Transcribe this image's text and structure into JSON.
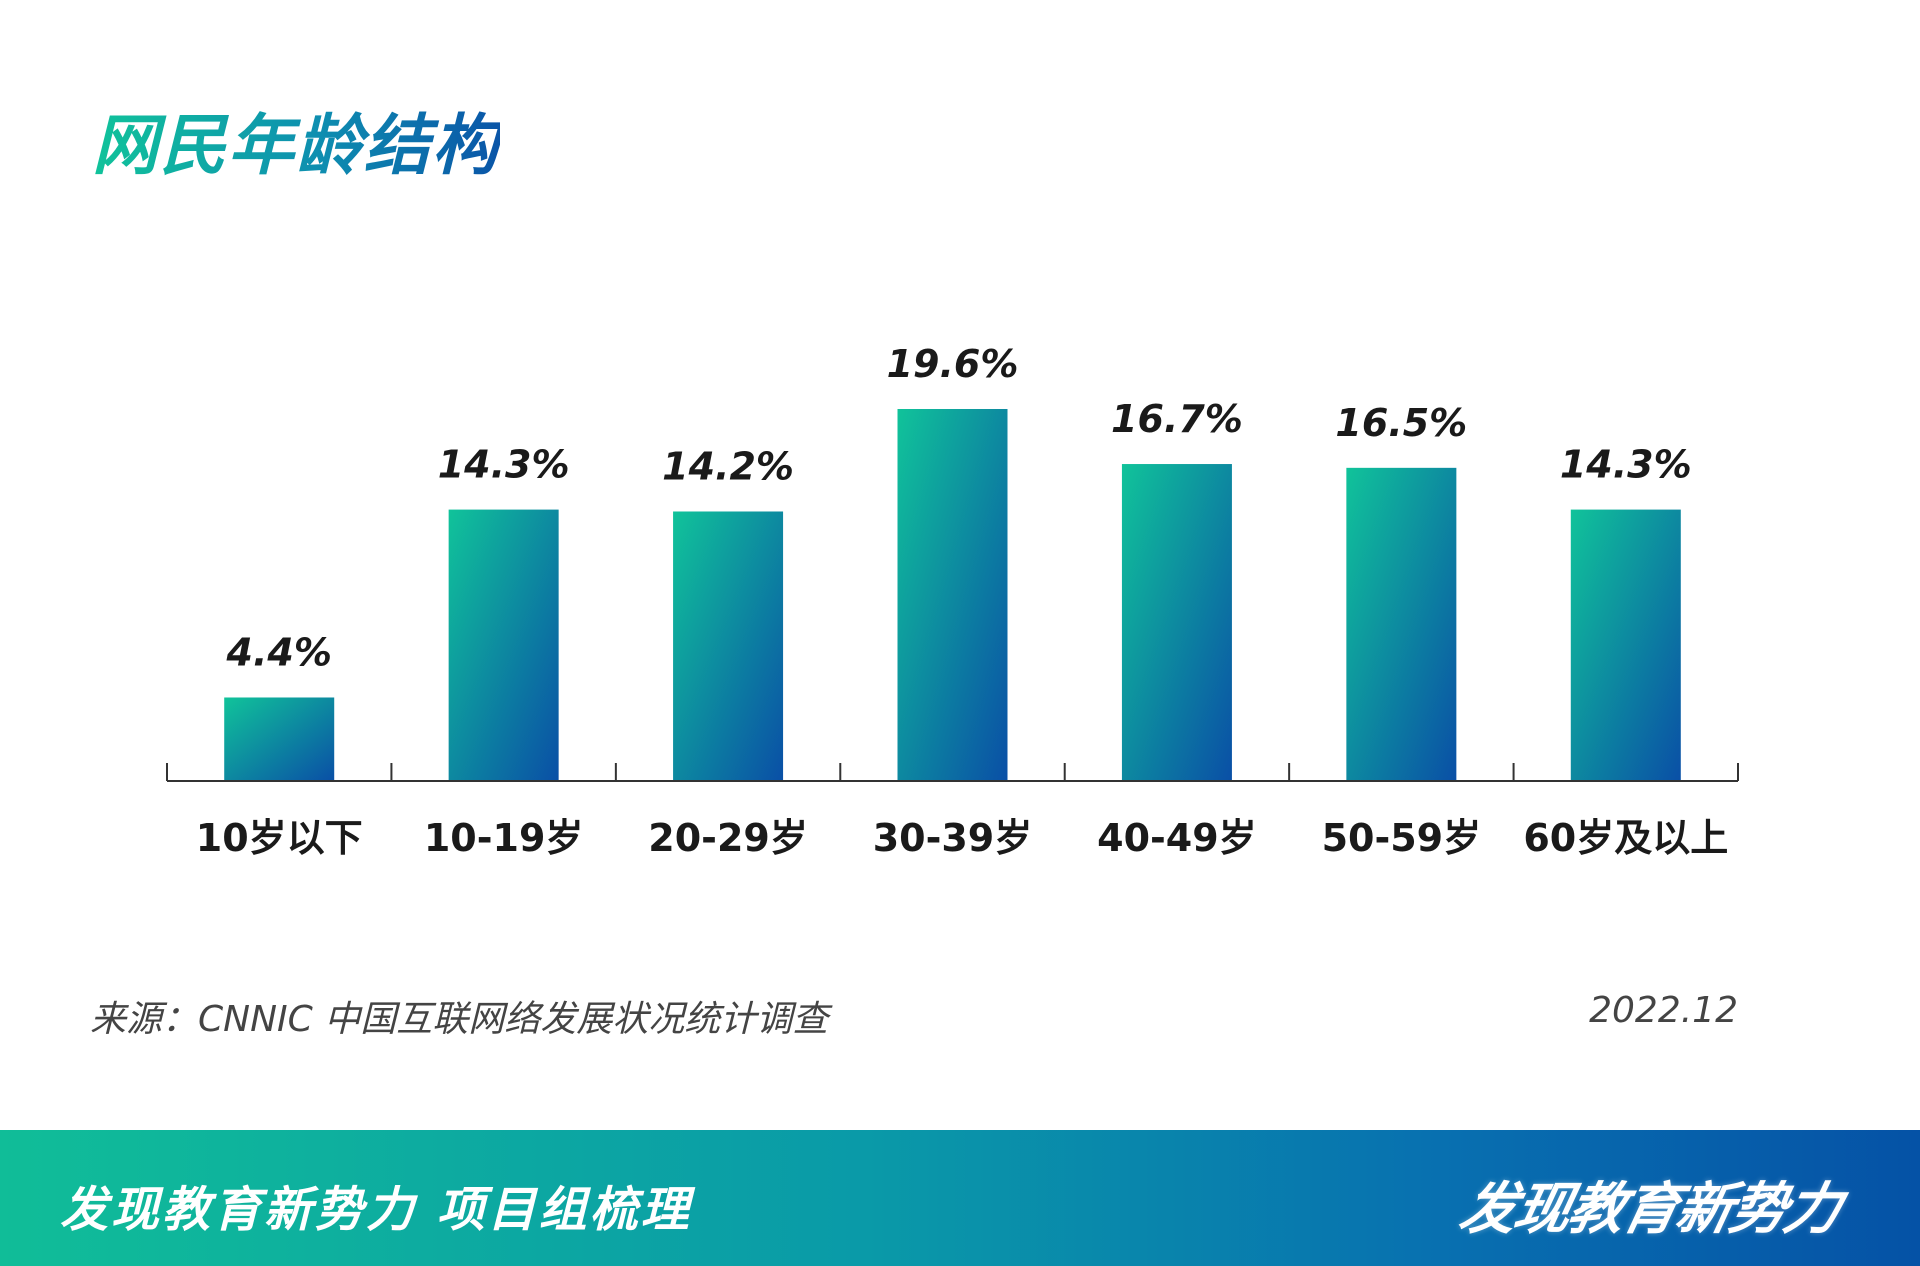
{
  "header": {
    "title": "网民年龄结构"
  },
  "chart_data": {
    "type": "bar",
    "categories": [
      "10岁以下",
      "10-19岁",
      "20-29岁",
      "30-39岁",
      "40-49岁",
      "50-59岁",
      "60岁及以上"
    ],
    "values": [
      4.4,
      14.3,
      14.2,
      19.6,
      16.7,
      16.5,
      14.3
    ],
    "value_labels": [
      "4.4%",
      "14.3%",
      "14.2%",
      "19.6%",
      "16.7%",
      "16.5%",
      "14.3%"
    ],
    "unit": "%",
    "ylim": [
      0,
      19.6
    ],
    "grid": false,
    "colors": {
      "bar_top": "#10c39a",
      "bar_bottom": "#0a4fa6"
    }
  },
  "footnote": {
    "source": "来源：CNNIC 中国互联网络发展状况统计调查",
    "date": "2022.12"
  },
  "footer": {
    "text": "发现教育新势力  项目组梳理",
    "logo_text": "发现教育新势力"
  }
}
